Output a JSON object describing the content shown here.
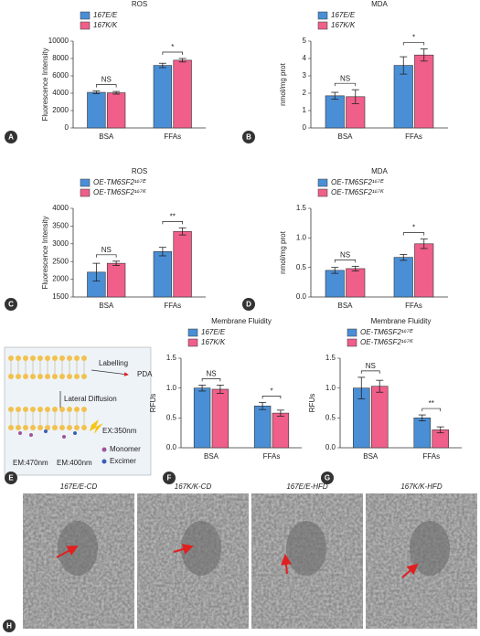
{
  "chart_data": [
    {
      "type": "bar",
      "title": "ROS",
      "ylabel": "Fluorescence Intensity",
      "categories": [
        "BSA",
        "FFAs"
      ],
      "series": [
        {
          "name": "167E/E",
          "color": "#4a8fd6",
          "values": [
            4100,
            7200
          ],
          "errors": [
            150,
            250
          ]
        },
        {
          "name": "167K/K",
          "color": "#ef5f8a",
          "values": [
            4050,
            7800
          ],
          "errors": [
            150,
            200
          ]
        }
      ],
      "annotations": [
        "NS",
        "*"
      ],
      "ylim": [
        0,
        10000
      ],
      "yticks": [
        0,
        2000,
        4000,
        6000,
        8000,
        10000
      ]
    },
    {
      "type": "bar",
      "title": "MDA",
      "ylabel": "nmol/mg prot",
      "categories": [
        "BSA",
        "FFAs"
      ],
      "series": [
        {
          "name": "167E/E",
          "color": "#4a8fd6",
          "values": [
            1.85,
            3.6
          ],
          "errors": [
            0.2,
            0.5
          ]
        },
        {
          "name": "167K/K",
          "color": "#ef5f8a",
          "values": [
            1.8,
            4.2
          ],
          "errors": [
            0.4,
            0.35
          ]
        }
      ],
      "annotations": [
        "NS",
        "*"
      ],
      "ylim": [
        0,
        5
      ],
      "yticks": [
        0,
        1,
        2,
        3,
        4,
        5
      ]
    },
    {
      "type": "bar",
      "title": "ROS",
      "ylabel": "Fluorescence Intensity",
      "categories": [
        "BSA",
        "FFAs"
      ],
      "series": [
        {
          "name": "OE-TM6SF2¹⁶⁷ᴱ",
          "color": "#4a8fd6",
          "values": [
            2200,
            2780
          ],
          "errors": [
            250,
            120
          ]
        },
        {
          "name": "OE-TM6SF2¹⁶⁷ᴷ",
          "color": "#ef5f8a",
          "values": [
            2450,
            3350
          ],
          "errors": [
            60,
            100
          ]
        }
      ],
      "annotations": [
        "NS",
        "**"
      ],
      "ylim": [
        1500,
        4000
      ],
      "yticks": [
        1500,
        2000,
        2500,
        3000,
        3500,
        4000
      ]
    },
    {
      "type": "bar",
      "title": "MDA",
      "ylabel": "nmol/mg prot",
      "categories": [
        "BSA",
        "FFAs"
      ],
      "series": [
        {
          "name": "OE-TM6SF2¹⁶⁷ᴱ",
          "color": "#4a8fd6",
          "values": [
            0.45,
            0.67
          ],
          "errors": [
            0.05,
            0.05
          ]
        },
        {
          "name": "OE-TM6SF2¹⁶⁷ᴷ",
          "color": "#ef5f8a",
          "values": [
            0.48,
            0.9
          ],
          "errors": [
            0.04,
            0.08
          ]
        }
      ],
      "annotations": [
        "NS",
        "*"
      ],
      "ylim": [
        0,
        1.5
      ],
      "yticks": [
        {
          "value": 0,
          "label": "0.0"
        },
        {
          "value": 0.5,
          "label": "0.5"
        },
        {
          "value": 1,
          "label": "1.0"
        },
        {
          "value": 1.5,
          "label": "1.5"
        }
      ]
    },
    {
      "type": "bar",
      "title": "Membrane Fluidity",
      "ylabel": "RFUs",
      "categories": [
        "BSA",
        "FFAs"
      ],
      "series": [
        {
          "name": "167E/E",
          "color": "#4a8fd6",
          "values": [
            1.0,
            0.7
          ],
          "errors": [
            0.05,
            0.06
          ]
        },
        {
          "name": "167K/K",
          "color": "#ef5f8a",
          "values": [
            0.98,
            0.58
          ],
          "errors": [
            0.07,
            0.05
          ]
        }
      ],
      "annotations": [
        "NS",
        "*"
      ],
      "ylim": [
        0,
        1.5
      ],
      "yticks": [
        {
          "value": 0,
          "label": "0.0"
        },
        {
          "value": 0.5,
          "label": "0.5"
        },
        {
          "value": 1,
          "label": "1.0"
        },
        {
          "value": 1.5,
          "label": "1.5"
        }
      ]
    },
    {
      "type": "bar",
      "title": "Membrane Fluidity",
      "ylabel": "RFUs",
      "categories": [
        "BSA",
        "FFAs"
      ],
      "series": [
        {
          "name": "OE-TM6SF2¹⁶⁷ᴱ",
          "color": "#4a8fd6",
          "values": [
            1.0,
            0.5
          ],
          "errors": [
            0.18,
            0.05
          ]
        },
        {
          "name": "OE-TM6SF2¹⁶⁷ᴷ",
          "color": "#ef5f8a",
          "values": [
            1.03,
            0.3
          ],
          "errors": [
            0.1,
            0.05
          ]
        }
      ],
      "annotations": [
        "NS",
        "**"
      ],
      "ylim": [
        0,
        1.5
      ],
      "yticks": [
        {
          "value": 0,
          "label": "0.0"
        },
        {
          "value": 0.5,
          "label": "0.5"
        },
        {
          "value": 1,
          "label": "1.0"
        },
        {
          "value": 1.5,
          "label": "1.5"
        }
      ]
    }
  ],
  "panels": [
    "A",
    "B",
    "C",
    "D",
    "E",
    "F",
    "G",
    "H"
  ],
  "diagram": {
    "labelling": "Labelling",
    "probe": "PDA",
    "diffusion": "Lateral Diffusion",
    "excitation": "EX:350nm",
    "monomer": "Monomer",
    "excimer": "Excimer",
    "em1": "EM:470nm",
    "em2": "EM:400nm"
  },
  "micrographs": [
    "167E/E-CD",
    "167K/K-CD",
    "167E/E-HFD",
    "167K/K-HFD"
  ]
}
